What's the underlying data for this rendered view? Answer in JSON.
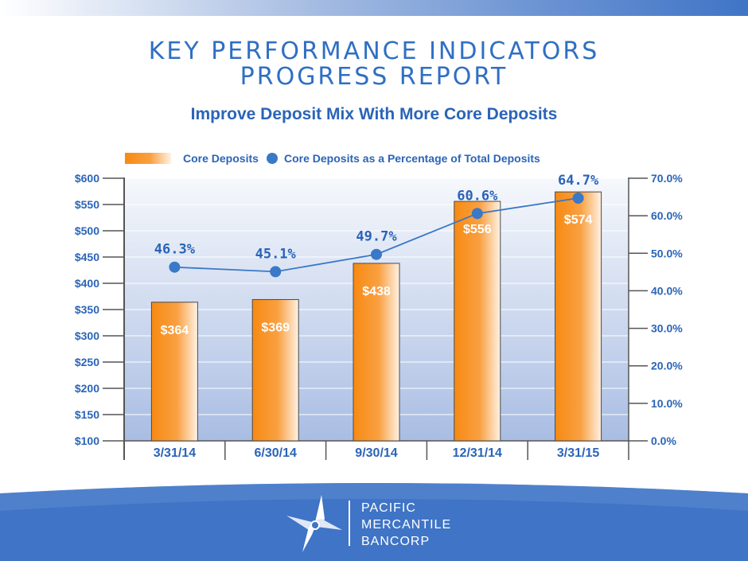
{
  "header": {
    "title_line1": "KEY PERFORMANCE INDICATORS",
    "title_line2": "PROGRESS REPORT",
    "subtitle": "Improve Deposit Mix With More Core Deposits"
  },
  "colors": {
    "title": "#2f6fc4",
    "bar": "#f7941d",
    "line": "#3a78c8",
    "band": "#3f74c6"
  },
  "chart_data": {
    "type": "bar",
    "title": "Improve Deposit Mix With More Core Deposits",
    "categories": [
      "3/31/14",
      "6/30/14",
      "9/30/14",
      "12/31/14",
      "3/31/15"
    ],
    "series": [
      {
        "name": "Core Deposits",
        "type": "bar",
        "axis": "left",
        "values": [
          364,
          369,
          438,
          556,
          574
        ],
        "labels": [
          "$364",
          "$369",
          "$438",
          "$556",
          "$574"
        ]
      },
      {
        "name": "Core Deposits as a Percentage of Total Deposits",
        "type": "line",
        "axis": "right",
        "values": [
          46.3,
          45.1,
          49.7,
          60.6,
          64.7
        ],
        "labels": [
          "46.3%",
          "45.1%",
          "49.7%",
          "60.6%",
          "64.7%"
        ]
      }
    ],
    "y_left": {
      "min": 100,
      "max": 600,
      "step": 50,
      "ticks": [
        "$100",
        "$150",
        "$200",
        "$250",
        "$300",
        "$350",
        "$400",
        "$450",
        "$500",
        "$550",
        "$600"
      ]
    },
    "y_right": {
      "min": 0,
      "max": 70,
      "step": 10,
      "ticks": [
        "0.0%",
        "10.0%",
        "20.0%",
        "30.0%",
        "40.0%",
        "50.0%",
        "60.0%",
        "70.0%"
      ]
    },
    "legend": [
      "Core Deposits",
      "Core Deposits as a Percentage of Total Deposits"
    ],
    "legend_position": "top-center",
    "grid": true
  },
  "footer": {
    "brand_lines": [
      "PACIFIC",
      "MERCANTILE",
      "BANCORP"
    ]
  }
}
